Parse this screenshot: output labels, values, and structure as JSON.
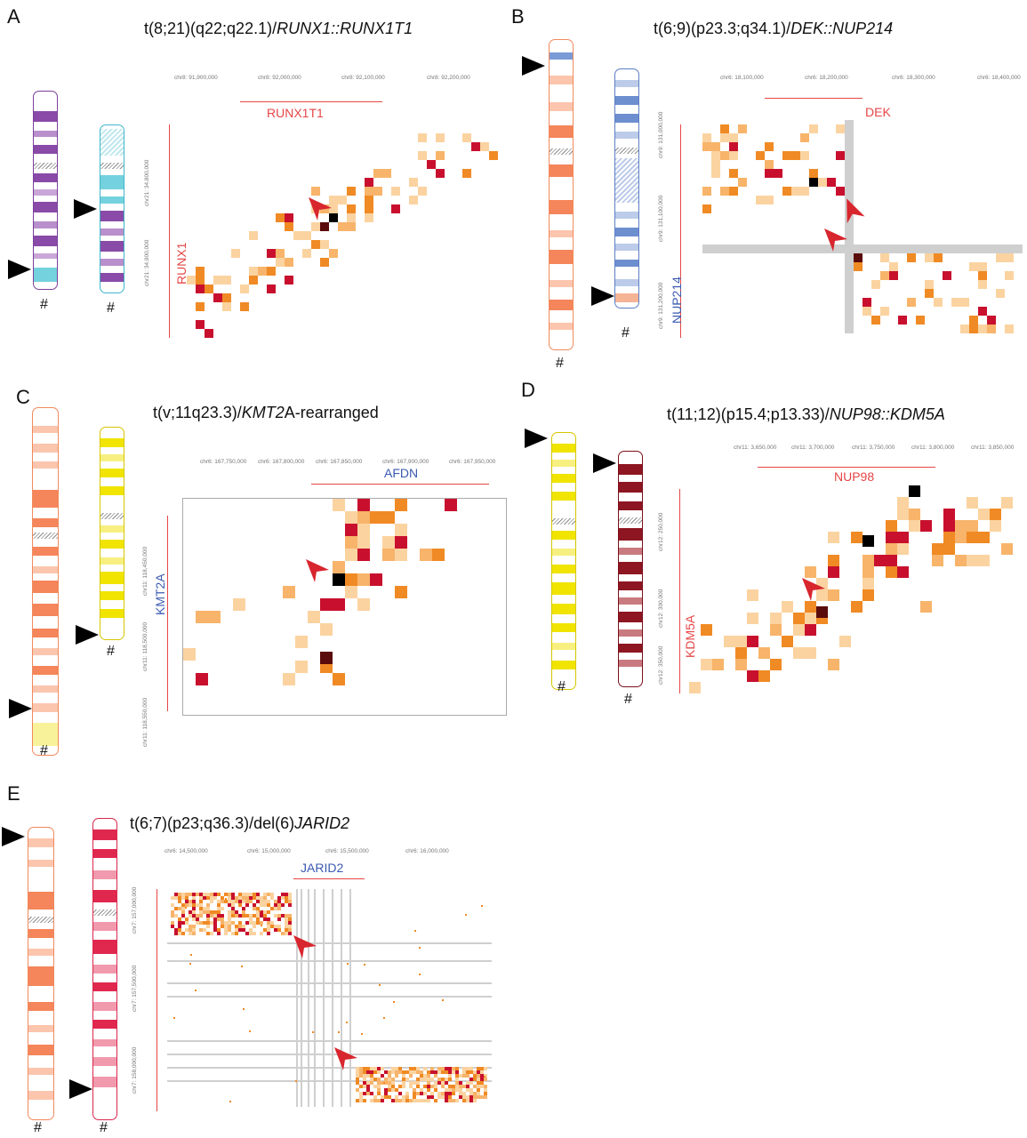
{
  "panels": {
    "A": {
      "letter": "A",
      "title_pre": "t(8;21)(q22;q22.1)/",
      "title_it": "RUNX1::RUNX1T1",
      "title_post": "",
      "hash": "#",
      "xcoords": [
        "chr8: 91,900,000",
        "chr8: 92,000,000",
        "chr8: 92,100,000",
        "chr8: 92,200,000"
      ],
      "ycoords": [
        "chr21: 34,800,000",
        "chr21: 34,900,000"
      ],
      "gene_top": "RUNX1T1",
      "gene_left": "RUNX1"
    },
    "B": {
      "letter": "B",
      "title_pre": "t(6;9)(p23.3;q34.1)/",
      "title_it": "DEK::NUP214",
      "title_post": "",
      "hash": "#",
      "xcoords": [
        "chr6: 18,100,000",
        "chr6: 18,200,000",
        "chr6: 18,300,000",
        "chr6: 18,400,000"
      ],
      "ycoords": [
        "chr9: 131,000,000",
        "chr9: 131,100,000",
        "chr9: 131,200,000"
      ],
      "gene_top": "DEK",
      "gene_left": "NUP214"
    },
    "C": {
      "letter": "C",
      "title_pre": "t(v;11q23.3)/",
      "title_it": "KMT2",
      "title_post": "A-rearranged",
      "hash": "#",
      "xcoords": [
        "chr6: 167,750,000",
        "chr6: 167,800,000",
        "chr6: 167,850,000",
        "chr6: 167,900,000",
        "chr6: 167,950,000"
      ],
      "ycoords": [
        "chr11: 118,450,000",
        "chr11: 118,500,000",
        "chr11: 118,550,000"
      ],
      "gene_top": "AFDN",
      "gene_left": "KMT2A"
    },
    "D": {
      "letter": "D",
      "title_pre": "t(11;12)(p15.4;p13.33)/",
      "title_it": "NUP98::KDM5A",
      "title_post": "",
      "hash": "#",
      "xcoords": [
        "chr11: 3,650,000",
        "chr11: 3,700,000",
        "chr11: 3,750,000",
        "chr11: 3,800,000",
        "chr11: 3,850,000"
      ],
      "ycoords": [
        "chr12: 250,000",
        "chr12: 300,000",
        "chr12: 350,000"
      ],
      "gene_top": "NUP98",
      "gene_left": "KDM5A"
    },
    "E": {
      "letter": "E",
      "title_pre": "t(6;7)(p23;q36.3)/del(6)",
      "title_it": "JARID2",
      "title_post": "",
      "hash": "#",
      "xcoords": [
        "chr6: 14,500,000",
        "chr6: 15,000,000",
        "chr6: 15,500,000",
        "chr6: 16,000,000"
      ],
      "ycoords": [
        "chr7: 157,000,000",
        "chr7: 157,500,000",
        "chr7: 158,000,000"
      ],
      "gene_top": "JARID2"
    }
  },
  "colors": {
    "heat_dark": "#5a0b0b",
    "heat_red": "#c8102e",
    "heat_orange": "#f08a24",
    "heat_light": "#fbd3a0",
    "gene_red": "#e64646",
    "gene_blue": "#3a5ab0"
  }
}
